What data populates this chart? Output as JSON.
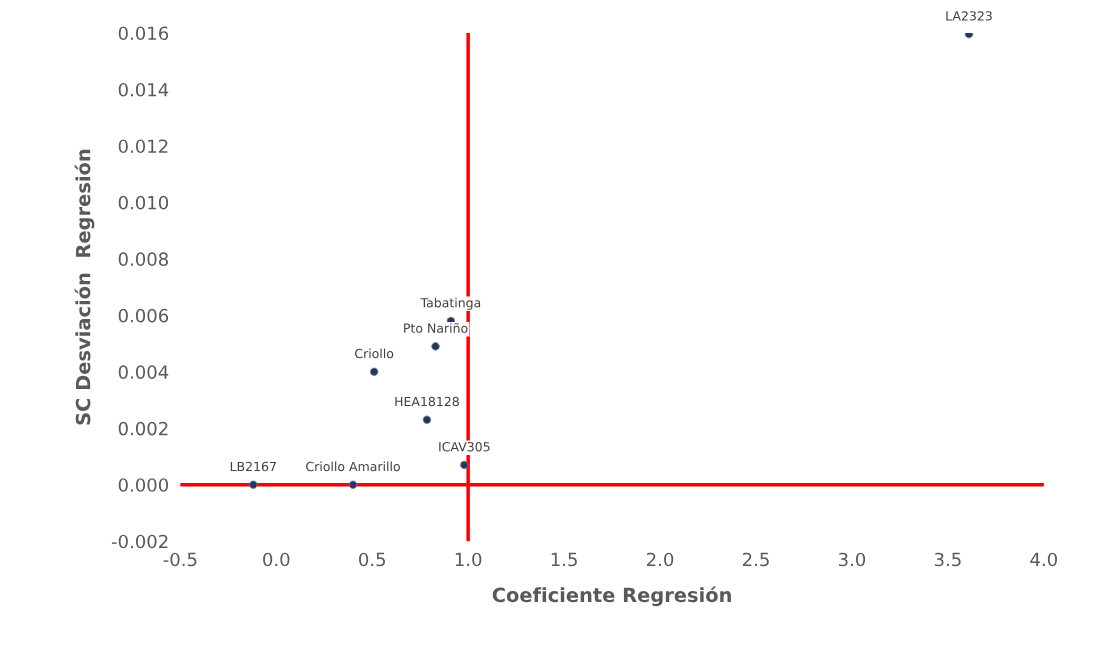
{
  "chart_data": {
    "type": "scatter",
    "xlabel": "Coeficiente Regresión",
    "ylabel": "SC Desviación  Regresión",
    "x": [
      3.61,
      0.91,
      0.83,
      0.51,
      0.785,
      0.98,
      0.4,
      -0.12
    ],
    "values": [
      0.01596,
      0.0058,
      0.0049,
      0.004,
      0.0023,
      0.0007,
      0.0,
      0.0
    ],
    "value_labels": [
      "LA2323",
      "Tabatinga",
      "Pto Nariño",
      "Criollo",
      "HEA18128",
      "ICAV305",
      "Criollo Amarillo",
      "LB2167"
    ],
    "color": "#203864",
    "marker": "circle",
    "grid": false,
    "legend": false,
    "xlim": [
      -0.5,
      4.0
    ],
    "xticks": [
      {
        "value": -0.5,
        "label": "-0.5"
      },
      {
        "value": 0,
        "label": "0.0"
      },
      {
        "value": 0.5,
        "label": "0.5"
      },
      {
        "value": 1,
        "label": "1.0"
      },
      {
        "value": 1.5,
        "label": "1.5"
      },
      {
        "value": 2,
        "label": "2.0"
      },
      {
        "value": 2.5,
        "label": "2.5"
      },
      {
        "value": 3,
        "label": "3.0"
      },
      {
        "value": 3.5,
        "label": "3.5"
      },
      {
        "value": 4,
        "label": "4.0"
      }
    ],
    "ylim": [
      -0.002,
      0.016
    ],
    "yticks": [
      {
        "value": -0.002,
        "label": "-0.002"
      },
      {
        "value": 0,
        "label": "0.000"
      },
      {
        "value": 0.002,
        "label": "0.002"
      },
      {
        "value": 0.004,
        "label": "0.004"
      },
      {
        "value": 0.006,
        "label": "0.006"
      },
      {
        "value": 0.008,
        "label": "0.008"
      },
      {
        "value": 0.01,
        "label": "0.010"
      },
      {
        "value": 0.012,
        "label": "0.012"
      },
      {
        "value": 0.014,
        "label": "0.014"
      },
      {
        "value": 0.016,
        "label": "0.016"
      }
    ],
    "ref_lines": [
      {
        "axis": "x",
        "value": 1.0,
        "color": "#ff0000"
      },
      {
        "axis": "y",
        "value": 0.0,
        "color": "#ff0000"
      }
    ]
  }
}
